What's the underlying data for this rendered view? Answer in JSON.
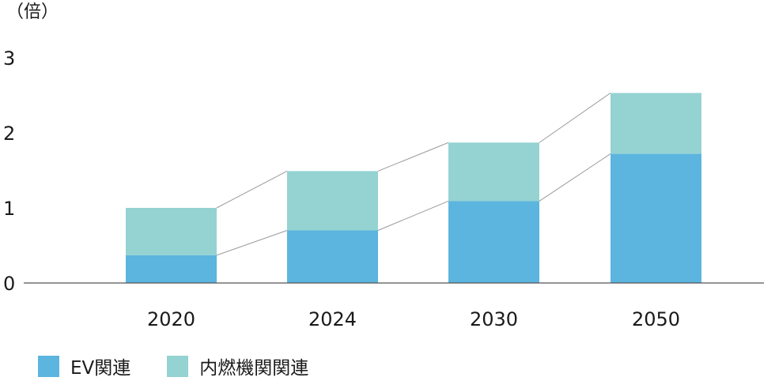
{
  "chart_data": {
    "type": "bar",
    "stacked": true,
    "unit_label": "（倍）",
    "categories": [
      "2020",
      "2024",
      "2030",
      "2050"
    ],
    "series": [
      {
        "name": "EV関連",
        "color": "#5bb5de",
        "values": [
          0.37,
          0.7,
          1.09,
          1.72
        ]
      },
      {
        "name": "内燃機関関連",
        "color": "#95d2d2",
        "values": [
          0.63,
          0.79,
          0.78,
          0.81
        ]
      }
    ],
    "totals": [
      1.0,
      1.49,
      1.87,
      2.53
    ],
    "y_ticks": [
      "0",
      "1",
      "2",
      "3"
    ],
    "ylim": [
      0,
      3
    ],
    "grid": false,
    "connector_lines": true,
    "legend_position": "bottom-left"
  }
}
